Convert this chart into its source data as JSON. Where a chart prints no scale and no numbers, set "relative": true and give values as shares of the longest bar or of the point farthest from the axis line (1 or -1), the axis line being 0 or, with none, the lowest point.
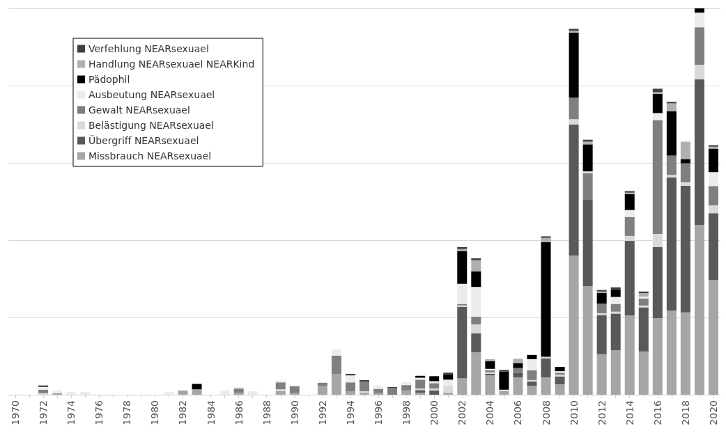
{
  "chart_data": {
    "type": "bar",
    "stacked": true,
    "relative": true,
    "grid": "y",
    "legend": "top left",
    "categories": [
      "1970",
      null,
      "1972",
      null,
      "1974",
      null,
      "1976",
      null,
      "1978",
      null,
      "1980",
      null,
      "1982",
      null,
      "1984",
      null,
      "1986",
      null,
      "1988",
      null,
      "1990",
      null,
      "1992",
      null,
      "1994",
      null,
      "1996",
      null,
      "1998",
      null,
      "2000",
      null,
      "2002",
      null,
      "2004",
      null,
      "2006",
      null,
      "2008",
      null,
      "2010",
      null,
      "2012",
      null,
      "2014",
      null,
      "2016",
      null,
      "2018",
      null,
      "2020"
    ],
    "series": [
      {
        "name": "Missbrauch NEARsexuael",
        "color": "#a6a6a6",
        "values": [
          0,
          0,
          0,
          0.004,
          0,
          0,
          0,
          0,
          0,
          0,
          0,
          0,
          0.011,
          0.014,
          0,
          0,
          0.005,
          0,
          0,
          0.009,
          0.004,
          0,
          0.022,
          0.054,
          0.009,
          0.005,
          0.004,
          0,
          0.011,
          0.005,
          0,
          0.005,
          0.043,
          0.11,
          0.05,
          0.009,
          0.045,
          0.023,
          0.045,
          0.027,
          0.36,
          0.281,
          0.105,
          0.115,
          0.205,
          0.112,
          0.198,
          0.218,
          0.213,
          0.439,
          0.297
        ]
      },
      {
        "name": "Übergriff NEARsexuael",
        "color": "#595959",
        "values": [
          0,
          0,
          0,
          0,
          0,
          0,
          0,
          0,
          0,
          0,
          0,
          0,
          0,
          0,
          0,
          0,
          0,
          0,
          0,
          0,
          0,
          0,
          0,
          0,
          0,
          0,
          0,
          0,
          0,
          0.007,
          0.011,
          0,
          0.184,
          0.049,
          0.004,
          0,
          0.011,
          0.011,
          0.049,
          0.02,
          0.339,
          0.225,
          0.101,
          0.095,
          0.193,
          0.114,
          0.184,
          0.344,
          0.328,
          0.377,
          0.173
        ]
      },
      {
        "name": "Belästigung NEARsexuael",
        "color": "#d9d9d9",
        "values": [
          0,
          0,
          0.004,
          0,
          0,
          0,
          0,
          0,
          0,
          0,
          0,
          0,
          0,
          0,
          0,
          0,
          0,
          0,
          0,
          0.005,
          0,
          0,
          0,
          0,
          0,
          0.004,
          0,
          0,
          0,
          0.004,
          0.005,
          0.018,
          0.004,
          0.023,
          0.004,
          0.004,
          0,
          0.004,
          0.004,
          0.005,
          0.014,
          0,
          0.005,
          0.005,
          0.013,
          0.005,
          0.034,
          0.007,
          0.009,
          0.038,
          0.02
        ]
      },
      {
        "name": "Gewalt NEARsexuael",
        "color": "#7f7f7f",
        "values": [
          0,
          0,
          0.009,
          0,
          0,
          0,
          0,
          0,
          0,
          0,
          0,
          0,
          0,
          0,
          0,
          0,
          0.011,
          0,
          0,
          0.018,
          0.018,
          0,
          0.009,
          0.047,
          0.023,
          0.025,
          0.011,
          0.018,
          0.014,
          0.023,
          0.014,
          0,
          0.004,
          0.02,
          0.005,
          0,
          0.013,
          0.025,
          0,
          0.005,
          0.056,
          0.068,
          0.025,
          0.02,
          0.049,
          0.018,
          0.295,
          0.05,
          0.049,
          0.097,
          0.05
        ]
      },
      {
        "name": "Ausbeutung NEARsexuael",
        "color": "#ececec",
        "values": [
          0,
          0,
          0.007,
          0.007,
          0.007,
          0.007,
          0,
          0,
          0,
          0,
          0,
          0.007,
          0,
          0,
          0,
          0.011,
          0.004,
          0.009,
          0,
          0.005,
          0,
          0,
          0,
          0.016,
          0.018,
          0,
          0.009,
          0,
          0.007,
          0.005,
          0.005,
          0.016,
          0.052,
          0.077,
          0.004,
          0,
          0,
          0.029,
          0,
          0.004,
          0,
          0.004,
          0,
          0.018,
          0.018,
          0.005,
          0.018,
          0,
          0,
          0.038,
          0.036
        ]
      },
      {
        "name": "Pädophil",
        "color": "#000000",
        "values": [
          0,
          0,
          0,
          0,
          0,
          0,
          0,
          0,
          0,
          0,
          0,
          0,
          0,
          0.014,
          0,
          0,
          0,
          0,
          0,
          0,
          0,
          0,
          0,
          0,
          0,
          0,
          0,
          0,
          0,
          0.005,
          0.013,
          0.014,
          0.085,
          0.04,
          0.02,
          0.047,
          0.013,
          0.011,
          0.297,
          0.011,
          0.168,
          0.07,
          0.027,
          0.02,
          0.041,
          0,
          0.05,
          0.115,
          0.011,
          0.011,
          0.061
        ]
      },
      {
        "name": "Handlung NEARsexuael NEARKind",
        "color": "#b0b0b0",
        "values": [
          0,
          0,
          0,
          0,
          0,
          0,
          0,
          0,
          0,
          0,
          0,
          0,
          0,
          0,
          0,
          0,
          0,
          0,
          0,
          0,
          0,
          0,
          0,
          0,
          0,
          0,
          0,
          0,
          0,
          0,
          0,
          0,
          0.005,
          0.029,
          0.005,
          0,
          0.011,
          0,
          0.011,
          0,
          0.005,
          0.007,
          0.004,
          0,
          0.004,
          0.009,
          0.004,
          0.02,
          0.045,
          0,
          0.005
        ]
      },
      {
        "name": "Verfehlung NEARsexuael",
        "color": "#404040",
        "values": [
          0,
          0,
          0.004,
          0,
          0,
          0,
          0,
          0,
          0,
          0,
          0,
          0,
          0,
          0,
          0,
          0,
          0,
          0,
          0,
          0,
          0,
          0,
          0,
          0,
          0.004,
          0.004,
          0,
          0.002,
          0,
          0,
          0,
          0.004,
          0.005,
          0.005,
          0,
          0.004,
          0,
          0,
          0.004,
          0,
          0.005,
          0.005,
          0.004,
          0.005,
          0.004,
          0.004,
          0.009,
          0.004,
          0,
          0,
          0.004
        ]
      }
    ]
  }
}
